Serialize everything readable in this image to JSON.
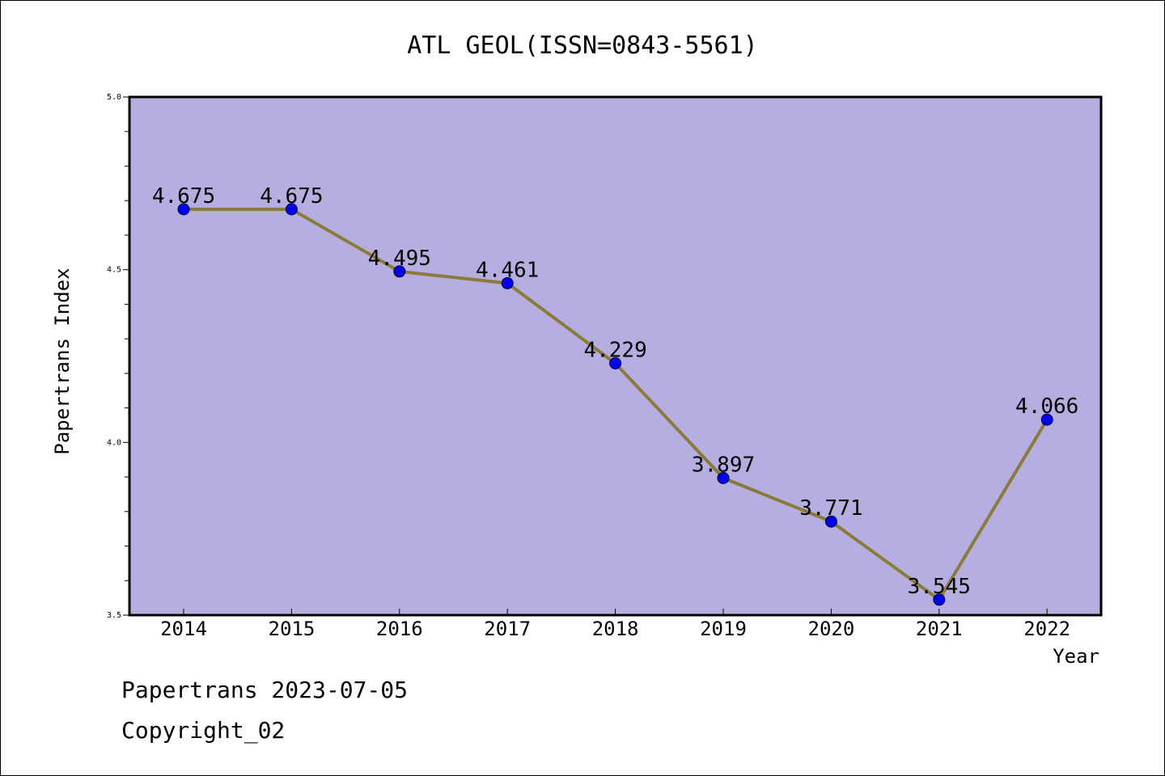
{
  "chart_data": {
    "type": "line",
    "title": "ATL GEOL(ISSN=0843-5561)",
    "xlabel": "Year",
    "ylabel": "Papertrans Index",
    "categories": [
      "2014",
      "2015",
      "2016",
      "2017",
      "2018",
      "2019",
      "2020",
      "2021",
      "2022"
    ],
    "series": [
      {
        "values": [
          4.675,
          4.675,
          4.495,
          4.461,
          4.229,
          3.897,
          3.771,
          3.545,
          4.066
        ]
      }
    ],
    "data_labels": [
      "4.675",
      "4.675",
      "4.495",
      "4.461",
      "4.229",
      "3.897",
      "3.771",
      "3.545",
      "4.066"
    ],
    "ylim": [
      3.5,
      5.0
    ],
    "yticks": [
      "3.5",
      "4.0",
      "4.5",
      "5.0"
    ],
    "grid": false,
    "colors": {
      "plot_background": "#b5aee1",
      "line": "#8b7a3a",
      "marker": "#0000ee"
    }
  },
  "footer": {
    "line1": "Papertrans 2023-07-05",
    "line2": "Copyright_02"
  }
}
